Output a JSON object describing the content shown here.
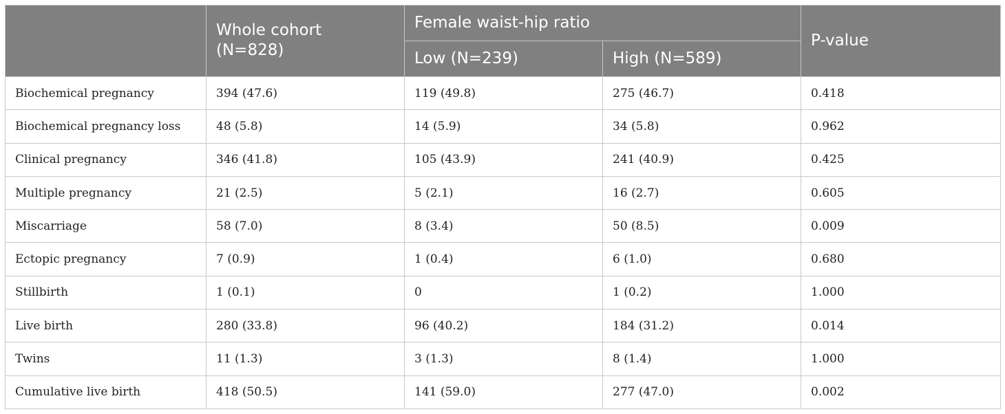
{
  "header": {
    "col_blank": "",
    "whole_cohort_line1": "Whole cohort",
    "whole_cohort_line2": "(N=828)",
    "group_label": "Female waist-hip ratio",
    "low_label": "Low (N=239)",
    "high_label": "High (N=589)",
    "p_value_label": "P-value"
  },
  "rows": [
    {
      "label": "Biochemical pregnancy",
      "whole": "394 (47.6)",
      "low": "119 (49.8)",
      "high": "275 (46.7)",
      "p": "0.418"
    },
    {
      "label": "Biochemical pregnancy loss",
      "whole": "48 (5.8)",
      "low": "14 (5.9)",
      "high": "34 (5.8)",
      "p": "0.962"
    },
    {
      "label": "Clinical pregnancy",
      "whole": "346 (41.8)",
      "low": "105 (43.9)",
      "high": "241 (40.9)",
      "p": "0.425"
    },
    {
      "label": "Multiple pregnancy",
      "whole": "21 (2.5)",
      "low": "5 (2.1)",
      "high": "16 (2.7)",
      "p": "0.605"
    },
    {
      "label": "Miscarriage",
      "whole": "58 (7.0)",
      "low": "8 (3.4)",
      "high": "50 (8.5)",
      "p": "0.009"
    },
    {
      "label": "Ectopic pregnancy",
      "whole": "7 (0.9)",
      "low": "1 (0.4)",
      "high": "6 (1.0)",
      "p": "0.680"
    },
    {
      "label": "Stillbirth",
      "whole": "1 (0.1)",
      "low": "0",
      "high": "1 (0.2)",
      "p": "1.000"
    },
    {
      "label": "Live birth",
      "whole": "280 (33.8)",
      "low": "96 (40.2)",
      "high": "184 (31.2)",
      "p": "0.014"
    },
    {
      "label": "Twins",
      "whole": "11 (1.3)",
      "low": "3 (1.3)",
      "high": "8 (1.4)",
      "p": "1.000"
    },
    {
      "label": "Cumulative live birth",
      "whole": "418 (50.5)",
      "low": "141 (59.0)",
      "high": "277 (47.0)",
      "p": "0.002"
    }
  ],
  "colors": {
    "header_bg": "#808080",
    "header_text": "#ffffff",
    "border": "#c8c8c8"
  }
}
